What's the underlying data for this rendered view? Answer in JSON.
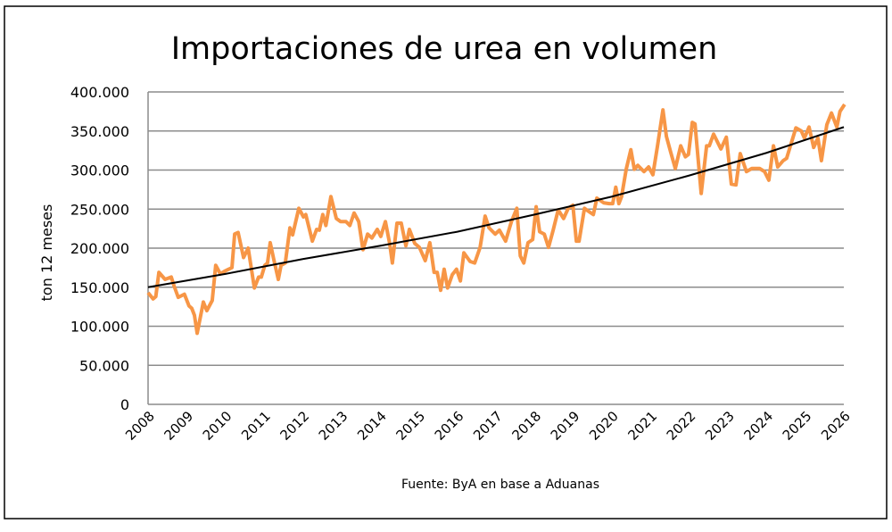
{
  "chart_data": {
    "type": "line",
    "title": "Importaciones de urea en volumen",
    "ylabel": "ton 12 meses",
    "xlabel": "",
    "source": "Fuente: ByA en base a Aduanas",
    "ylim": [
      0,
      400000
    ],
    "xlim": [
      2008,
      2026
    ],
    "y_ticks": [
      0,
      50000,
      100000,
      150000,
      200000,
      250000,
      300000,
      350000,
      400000
    ],
    "y_tick_labels": [
      "0",
      "50.000",
      "100.000",
      "150.000",
      "200.000",
      "250.000",
      "300.000",
      "350.000",
      "400.000"
    ],
    "x_tick_labels": [
      "2008",
      "2009",
      "2010",
      "2011",
      "2012",
      "2013",
      "2014",
      "2015",
      "2016",
      "2017",
      "2018",
      "2019",
      "2020",
      "2021",
      "2022",
      "2023",
      "2024",
      "2025",
      "2026"
    ],
    "grid": "horizontal",
    "legend": "none",
    "colors": {
      "series": "#F79646",
      "trend": "#000000",
      "grid": "#8c8c8c"
    },
    "series": [
      {
        "x": [
          2008.0,
          2008.13,
          2008.2,
          2008.28,
          2008.44,
          2008.6,
          2008.67,
          2008.78,
          2008.94,
          2009.06,
          2009.13,
          2009.2,
          2009.27,
          2009.43,
          2009.52,
          2009.66,
          2009.75,
          2009.87,
          2010.0,
          2010.17,
          2010.24,
          2010.33,
          2010.47,
          2010.59,
          2010.75,
          2010.86,
          2010.93,
          2011.02,
          2011.09,
          2011.16,
          2011.25,
          2011.37,
          2011.44,
          2011.55,
          2011.67,
          2011.74,
          2011.9,
          2012.02,
          2012.08,
          2012.25,
          2012.36,
          2012.43,
          2012.52,
          2012.6,
          2012.73,
          2012.87,
          2012.98,
          2013.12,
          2013.22,
          2013.33,
          2013.45,
          2013.56,
          2013.68,
          2013.79,
          2013.93,
          2014.02,
          2014.14,
          2014.25,
          2014.32,
          2014.44,
          2014.55,
          2014.67,
          2014.76,
          2014.9,
          2015.02,
          2015.17,
          2015.29,
          2015.4,
          2015.48,
          2015.57,
          2015.66,
          2015.75,
          2015.87,
          2015.98,
          2016.08,
          2016.17,
          2016.33,
          2016.45,
          2016.59,
          2016.72,
          2016.82,
          2016.98,
          2017.09,
          2017.25,
          2017.4,
          2017.54,
          2017.63,
          2017.72,
          2017.83,
          2017.95,
          2018.04,
          2018.13,
          2018.25,
          2018.36,
          2018.48,
          2018.61,
          2018.75,
          2018.87,
          2018.99,
          2019.08,
          2019.15,
          2019.29,
          2019.4,
          2019.52,
          2019.61,
          2019.79,
          2019.93,
          2020.02,
          2020.1,
          2020.18,
          2020.25,
          2020.37,
          2020.49,
          2020.58,
          2020.67,
          2020.83,
          2020.95,
          2021.06,
          2021.18,
          2021.32,
          2021.41,
          2021.52,
          2021.64,
          2021.78,
          2021.9,
          2021.98,
          2022.08,
          2022.15,
          2022.31,
          2022.45,
          2022.52,
          2022.63,
          2022.82,
          2022.96,
          2023.09,
          2023.21,
          2023.32,
          2023.48,
          2023.62,
          2023.82,
          2023.95,
          2024.06,
          2024.18,
          2024.29,
          2024.43,
          2024.52,
          2024.76,
          2024.9,
          2024.98,
          2025.1,
          2025.22,
          2025.33,
          2025.42,
          2025.56,
          2025.68,
          2025.82,
          2025.9,
          2026.02
        ],
        "values": [
          143000,
          135000,
          138000,
          169000,
          160000,
          163000,
          152000,
          137000,
          141000,
          126000,
          123000,
          114000,
          91000,
          131000,
          120000,
          133000,
          178000,
          167000,
          171000,
          175000,
          218000,
          220000,
          188000,
          200000,
          149000,
          163000,
          163000,
          178000,
          181000,
          207000,
          186000,
          160000,
          178000,
          181000,
          226000,
          217000,
          251000,
          240000,
          243000,
          209000,
          224000,
          223000,
          243000,
          229000,
          266000,
          238000,
          234000,
          234000,
          229000,
          245000,
          234000,
          198000,
          218000,
          213000,
          224000,
          215000,
          234000,
          206000,
          181000,
          232000,
          232000,
          203000,
          224000,
          206000,
          201000,
          184000,
          207000,
          169000,
          169000,
          146000,
          173000,
          149000,
          166000,
          173000,
          158000,
          194000,
          183000,
          181000,
          201000,
          241000,
          226000,
          218000,
          223000,
          209000,
          234000,
          251000,
          190000,
          181000,
          207000,
          211000,
          253000,
          221000,
          218000,
          201000,
          223000,
          249000,
          238000,
          251000,
          255000,
          209000,
          209000,
          251000,
          247000,
          243000,
          264000,
          258000,
          257000,
          257000,
          278000,
          257000,
          266000,
          301000,
          326000,
          301000,
          306000,
          298000,
          304000,
          294000,
          331000,
          377000,
          343000,
          323000,
          302000,
          331000,
          317000,
          320000,
          361000,
          359000,
          270000,
          331000,
          331000,
          346000,
          327000,
          342000,
          282000,
          281000,
          321000,
          298000,
          302000,
          302000,
          298000,
          287000,
          331000,
          304000,
          312000,
          315000,
          354000,
          350000,
          341000,
          355000,
          329000,
          341000,
          312000,
          358000,
          373000,
          355000,
          375000,
          384000
        ]
      }
    ],
    "trendline": {
      "x": [
        2008,
        2010,
        2012,
        2014,
        2016,
        2018,
        2020,
        2022,
        2024,
        2026
      ],
      "values": [
        150000,
        167000,
        186000,
        203000,
        221000,
        243000,
        266000,
        293000,
        322000,
        355000
      ]
    }
  }
}
